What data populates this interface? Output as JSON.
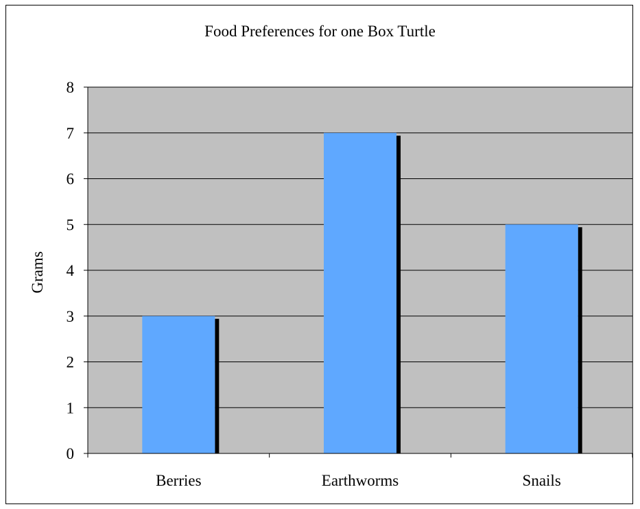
{
  "chart_data": {
    "type": "bar",
    "title": "Food Preferences for one Box Turtle",
    "ylabel": "Grams",
    "xlabel": "",
    "categories": [
      "Berries",
      "Earthworms",
      "Snails"
    ],
    "values": [
      3,
      7,
      5
    ],
    "ylim": [
      0,
      8
    ],
    "yticks": [
      0,
      1,
      2,
      3,
      4,
      5,
      6,
      7,
      8
    ],
    "grid": true,
    "legend": "none",
    "colors": {
      "plot_background": "#c0c0c0",
      "bar_fill": "#5fa8ff",
      "bar_shadow": "#000000",
      "gridline": "#000000"
    }
  }
}
